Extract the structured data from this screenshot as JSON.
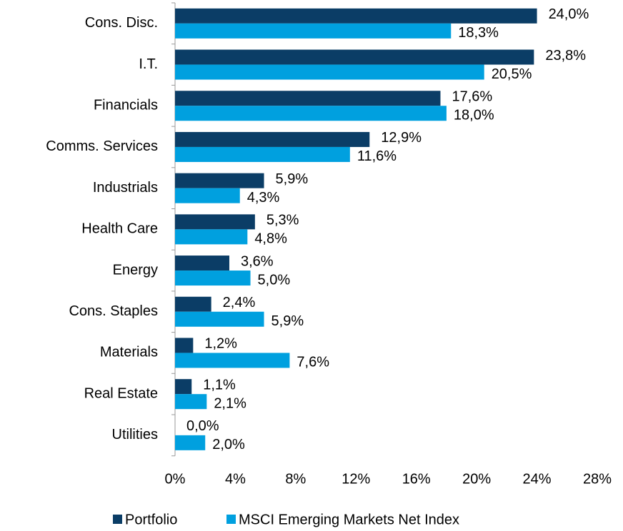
{
  "chart_data": {
    "type": "bar",
    "orientation": "horizontal",
    "categories": [
      "Cons. Disc.",
      "I.T.",
      "Financials",
      "Comms. Services",
      "Industrials",
      "Health Care",
      "Energy",
      "Cons. Staples",
      "Materials",
      "Real Estate",
      "Utilities"
    ],
    "series": [
      {
        "name": "Portfolio",
        "color": "#0b3d66",
        "values": [
          24.0,
          23.8,
          17.6,
          12.9,
          5.9,
          5.3,
          3.6,
          2.4,
          1.2,
          1.1,
          0.0
        ],
        "value_labels": [
          "24,0%",
          "23,8%",
          "17,6%",
          "12,9%",
          "5,9%",
          "5,3%",
          "3,6%",
          "2,4%",
          "1,2%",
          "1,1%",
          "0,0%"
        ]
      },
      {
        "name": "MSCI Emerging Markets Net Index",
        "color": "#00a0df",
        "values": [
          18.3,
          20.5,
          18.0,
          11.6,
          4.3,
          4.8,
          5.0,
          5.9,
          7.6,
          2.1,
          2.0
        ],
        "value_labels": [
          "18,3%",
          "20,5%",
          "18,0%",
          "11,6%",
          "4,3%",
          "4,8%",
          "5,0%",
          "5,9%",
          "7,6%",
          "2,1%",
          "2,0%"
        ]
      }
    ],
    "xlim": [
      0,
      28
    ],
    "xticks": [
      {
        "value": 0,
        "label": "0%"
      },
      {
        "value": 4,
        "label": "4%"
      },
      {
        "value": 8,
        "label": "8%"
      },
      {
        "value": 12,
        "label": "12%"
      },
      {
        "value": 16,
        "label": "16%"
      },
      {
        "value": 20,
        "label": "20%"
      },
      {
        "value": 24,
        "label": "24%"
      },
      {
        "value": 28,
        "label": "28%"
      }
    ],
    "grid": false,
    "legend": "bottom"
  }
}
